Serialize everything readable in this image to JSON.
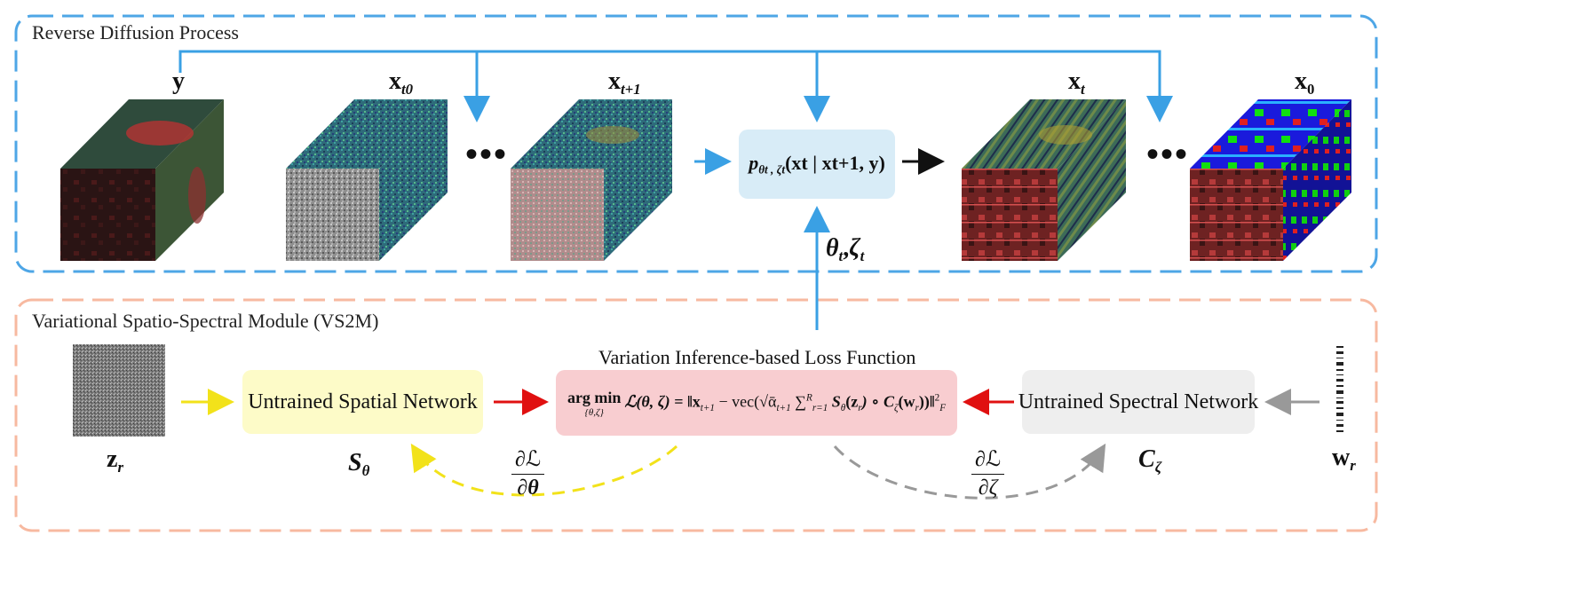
{
  "colors": {
    "reverse_frame": "#4ea6e6",
    "vs2m_frame": "#f7b9a0",
    "blue_arrow": "#3aa0e4",
    "red_arrow": "#e01010",
    "yellow_arrow": "#f2e21a",
    "gray_arrow": "#999999",
    "spatial_box": "#fdfbc8",
    "spectral_box": "#eeeeee",
    "loss_box": "#f8cdd0",
    "pdist_box": "#d8ecf7"
  },
  "reverse": {
    "title": "Reverse Diffusion Process",
    "cubes": [
      {
        "label": "y",
        "sub": "",
        "kind": "observed"
      },
      {
        "label": "x",
        "sub": "t0",
        "kind": "noise"
      },
      {
        "label": "x",
        "sub": "t+1",
        "kind": "partial"
      },
      {
        "label": "x",
        "sub": "t",
        "kind": "restored"
      },
      {
        "label": "x",
        "sub": "0",
        "kind": "clean"
      }
    ],
    "ellipsis": "•••",
    "pdist": {
      "p": "p",
      "sub": "θt , ζt",
      "args": "(xt | xt+1, y)"
    },
    "params": {
      "theta": "θ",
      "theta_sub": "t",
      "comma": ",",
      "zeta": "ζ",
      "zeta_sub": "t"
    }
  },
  "vs2m": {
    "title": "Variational Spatio-Spectral Module (VS2M)",
    "loss_title": "Variation Inference-based Loss Function",
    "spatial_label": "Untrained Spatial Network",
    "spectral_label": "Untrained Spectral Network",
    "z_label": "z",
    "z_sub": "r",
    "w_label": "w",
    "w_sub": "r",
    "s_label": "S",
    "s_sub": "θ",
    "c_label": "C",
    "c_sub": "ζ",
    "grad_theta_num": "∂ℒ",
    "grad_theta_den": "∂θ",
    "grad_zeta_num": "∂ℒ",
    "grad_zeta_den": "∂ζ",
    "loss": {
      "argmin": "arg min",
      "argmin_sub": "{θ,ζ}",
      "lhs": "ℒ(θ, ζ) =",
      "rhs_a": "‖x",
      "rhs_a_sub": "t+1",
      "rhs_b": " − vec(√ᾱ",
      "rhs_b_sub": "t+1",
      "rhs_sum": " ∑",
      "rhs_sum_sup": "R",
      "rhs_sum_sub": "r=1",
      "rhs_c": " S",
      "rhs_c_sub": "θ",
      "rhs_d": "(z",
      "rhs_d_sub": "r",
      "rhs_e": ") ∘ C",
      "rhs_e_sub": "ζ",
      "rhs_f": "(w",
      "rhs_f_sub": "r",
      "rhs_g": "))‖",
      "rhs_g_sup": "2",
      "rhs_g_sub": "F"
    }
  }
}
